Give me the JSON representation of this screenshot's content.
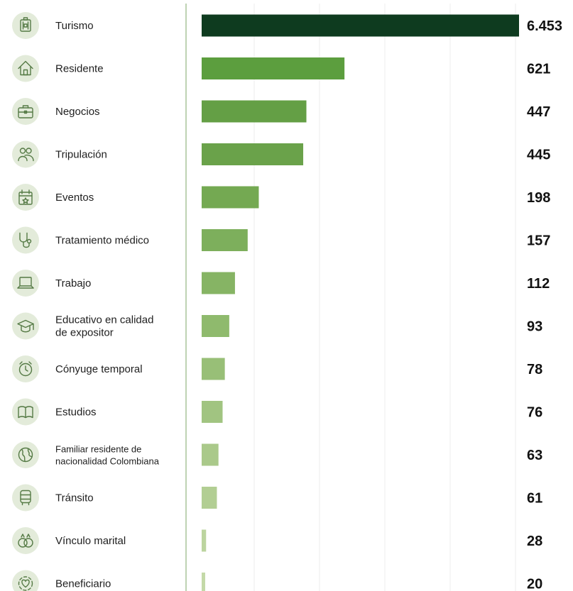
{
  "chart_data": {
    "type": "bar",
    "orientation": "horizontal",
    "categories": [
      "Turismo",
      "Residente",
      "Negocios",
      "Tripulación",
      "Eventos",
      "Tratamiento médico",
      "Trabajo",
      "Educativo en calidad de expositor",
      "Cónyuge temporal",
      "Estudios",
      "Familiar residente de nacionalidad Colombiana",
      "Tránsito",
      "Vínculo marital",
      "Beneficiario"
    ],
    "value_labels": [
      "6.453",
      "621",
      "447",
      "445",
      "198",
      "157",
      "112",
      "93",
      "78",
      "76",
      "63",
      "61",
      "28",
      "20"
    ],
    "values": [
      6453,
      621,
      447,
      445,
      198,
      157,
      112,
      93,
      78,
      76,
      63,
      61,
      28,
      20
    ],
    "bar_lengths_relative": [
      1.0,
      0.45,
      0.33,
      0.32,
      0.18,
      0.145,
      0.105,
      0.087,
      0.073,
      0.066,
      0.053,
      0.048,
      0.014,
      0.011
    ],
    "icons": [
      "suitcase-icon",
      "house-icon",
      "briefcase-icon",
      "people-icon",
      "calendar-star-icon",
      "stethoscope-icon",
      "laptop-icon",
      "graduation-cap-icon",
      "clock-icon",
      "open-book-icon",
      "globe-icon",
      "bus-icon",
      "rings-icon",
      "heart-globe-icon"
    ],
    "title": "",
    "xlabel": "",
    "ylabel": "",
    "grid": true,
    "legend": "none",
    "colors": {
      "top_bar": "#0e3b1f",
      "bar_gradient": [
        "#4f9432",
        "#5c9e3e",
        "#649f45",
        "#6aa24a",
        "#74a952",
        "#7daf5c",
        "#86b464",
        "#8fba6d",
        "#98bf77",
        "#a1c481",
        "#aac98a",
        "#b2ce93",
        "#bcd49f",
        "#c4d9a8"
      ],
      "icon_circle": "#e3ebda",
      "icon_stroke": "#557a45",
      "divider": "#a8c49a",
      "grid": "#ececec"
    }
  }
}
